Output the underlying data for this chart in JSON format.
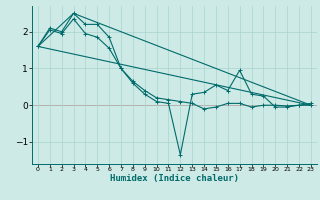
{
  "xlabel": "Humidex (Indice chaleur)",
  "bg_color": "#ceeae6",
  "line_color": "#006b6b",
  "grid_color": "#aad4ce",
  "zero_line_color": "#d06060",
  "xlim": [
    -0.5,
    23.5
  ],
  "ylim": [
    -1.6,
    2.7
  ],
  "yticks": [
    -1,
    0,
    1,
    2
  ],
  "xticks": [
    0,
    1,
    2,
    3,
    4,
    5,
    6,
    7,
    8,
    9,
    10,
    11,
    12,
    13,
    14,
    15,
    16,
    17,
    18,
    19,
    20,
    21,
    22,
    23
  ],
  "line1_x": [
    0,
    1,
    2,
    3,
    4,
    5,
    6,
    7,
    8,
    9,
    10,
    11,
    12,
    13,
    14,
    15,
    16,
    17,
    18,
    19,
    20,
    21,
    22,
    23
  ],
  "line1_y": [
    1.6,
    2.1,
    2.0,
    2.5,
    2.2,
    2.2,
    1.85,
    1.0,
    0.65,
    0.4,
    0.2,
    0.15,
    0.1,
    0.05,
    -0.1,
    -0.05,
    0.05,
    0.05,
    -0.05,
    0.0,
    0.0,
    -0.02,
    0.0,
    0.0
  ],
  "line2_x": [
    0,
    1,
    2,
    3,
    4,
    5,
    6,
    7,
    8,
    9,
    10,
    11,
    12,
    13,
    14,
    15,
    16,
    17,
    18,
    19,
    20,
    21,
    22,
    23
  ],
  "line2_y": [
    1.6,
    2.05,
    1.95,
    2.35,
    1.95,
    1.85,
    1.55,
    1.0,
    0.6,
    0.3,
    0.1,
    0.05,
    -1.35,
    0.3,
    0.35,
    0.55,
    0.4,
    0.95,
    0.3,
    0.25,
    -0.05,
    -0.05,
    0.0,
    0.05
  ],
  "line3_x": [
    0,
    3,
    23
  ],
  "line3_y": [
    1.6,
    2.5,
    0.0
  ],
  "line4_x": [
    0,
    23
  ],
  "line4_y": [
    1.6,
    0.0
  ]
}
